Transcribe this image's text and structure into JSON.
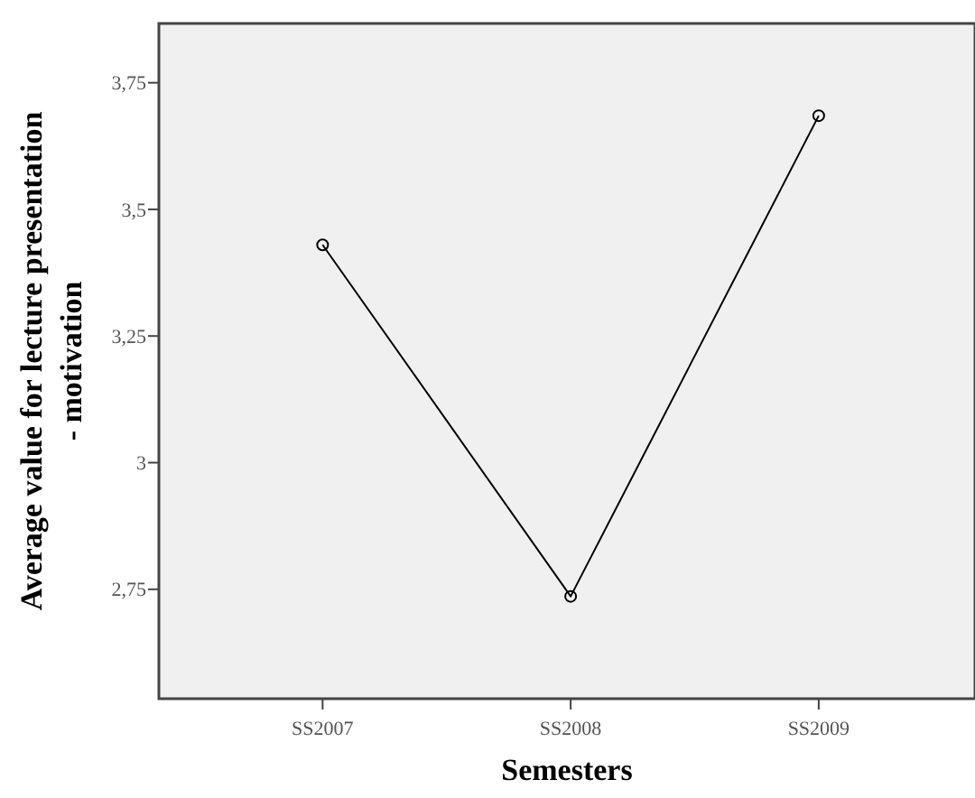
{
  "chart_data": {
    "type": "line",
    "xlabel": "Semesters",
    "ylabel": "Average value for lecture presentation\n- motivation",
    "categories": [
      "SS2007",
      "SS2008",
      "SS2009"
    ],
    "series": [
      {
        "color": "#000000",
        "values": [
          3.43,
          2.736,
          3.685
        ]
      }
    ],
    "ylim": [
      2.534,
      3.867
    ],
    "yticks": [
      {
        "value": 2.75,
        "label": "2,75"
      },
      {
        "value": 3,
        "label": "3"
      },
      {
        "value": 3.25,
        "label": "3,25"
      },
      {
        "value": 3.5,
        "label": "3,5"
      },
      {
        "value": 3.75,
        "label": "3,75"
      }
    ],
    "marker": "circle",
    "grid": false
  }
}
